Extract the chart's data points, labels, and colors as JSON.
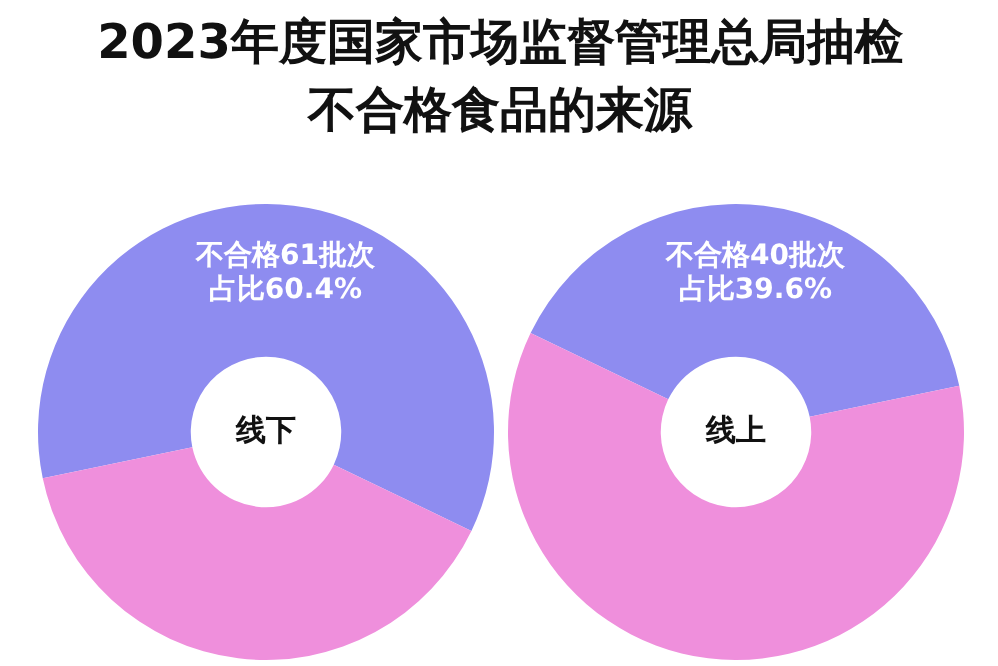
{
  "chart_data": [
    {
      "type": "donut",
      "title": "2023年度国家市场监督管理总局抽检不合格食品的来源",
      "categories": [
        null,
        null
      ],
      "values": [
        60.4,
        39.6
      ],
      "colors": [
        "#8e8cf0",
        "#ef8fdc"
      ],
      "value_labels": [
        "不合格61批次占比60.4%",
        null
      ],
      "annotations": [
        "线下"
      ]
    },
    {
      "type": "donut",
      "categories": [
        null,
        null
      ],
      "values": [
        39.6,
        60.4
      ],
      "colors": [
        "#8e8cf0",
        "#ef8fdc"
      ],
      "value_labels": [
        "不合格40批次占比39.6%",
        null
      ],
      "annotations": [
        "线上"
      ]
    }
  ]
}
